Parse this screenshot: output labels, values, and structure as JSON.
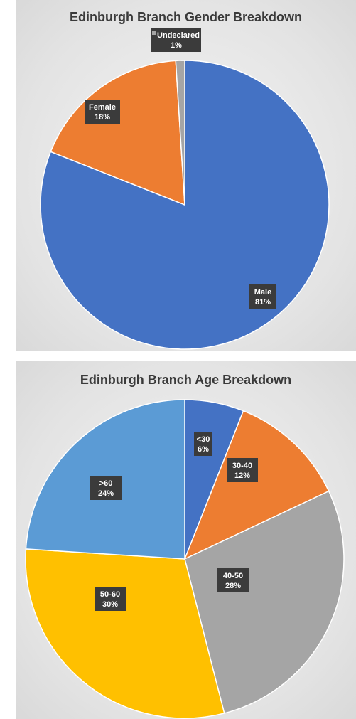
{
  "chart_data": [
    {
      "type": "pie",
      "title": "Edinburgh Branch Gender Breakdown",
      "categories": [
        "Male",
        "Female",
        "Undeclared"
      ],
      "values": [
        81,
        18,
        1
      ],
      "value_labels": [
        "81%",
        "18%",
        "1%"
      ],
      "colors": [
        "#4472C4",
        "#ED7D31",
        "#A5A5A5"
      ],
      "start_angle_deg": 0,
      "direction": "clockwise",
      "legend": "none",
      "data_labels": "callouts with category and percentage"
    },
    {
      "type": "pie",
      "title": "Edinburgh Branch Age Breakdown",
      "categories": [
        "<30",
        "30-40",
        "40-50",
        "50-60",
        ">60"
      ],
      "values": [
        6,
        12,
        28,
        30,
        24
      ],
      "value_labels": [
        "6%",
        "12%",
        "28%",
        "30%",
        "24%"
      ],
      "colors": [
        "#4472C4",
        "#ED7D31",
        "#A5A5A5",
        "#FFC000",
        "#5B9BD5"
      ],
      "start_angle_deg": 0,
      "direction": "clockwise",
      "legend": "none",
      "data_labels": "callouts with category and percentage"
    }
  ]
}
